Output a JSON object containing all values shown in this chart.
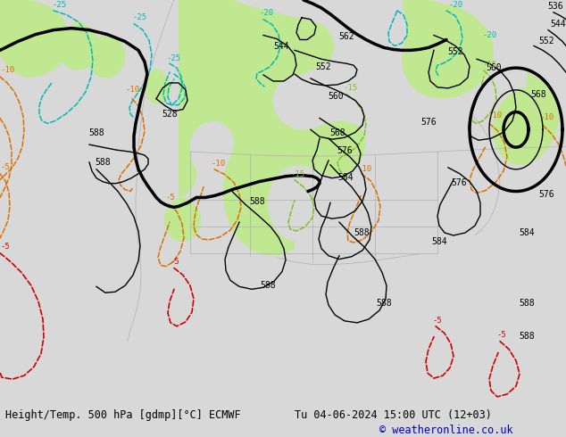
{
  "title_left": "Height/Temp. 500 hPa [gdmp][°C] ECMWF",
  "title_right": "Tu 04-06-2024 15:00 UTC (12+03)",
  "copyright": "© weatheronline.co.uk",
  "bg_color": "#d8d8d8",
  "map_bg": "#d8d8d8",
  "green_fill": "#c0e890",
  "white_strip": "#ffffff",
  "black": "#000000",
  "cyan": "#00b8b8",
  "yellow_green": "#80c020",
  "orange": "#d87000",
  "red": "#cc0000",
  "gray_coast": "#b0b0b0",
  "fig_width": 6.34,
  "fig_height": 4.9,
  "dpi": 100
}
